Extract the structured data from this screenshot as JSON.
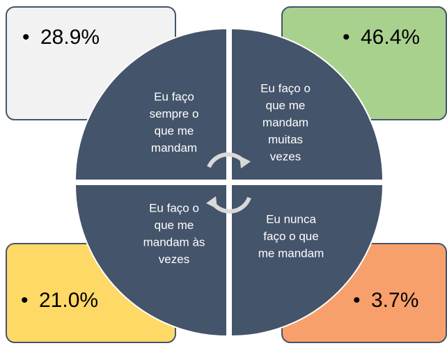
{
  "nodes": [
    {
      "label": [
        "Eu faço",
        "sempre o",
        "que me",
        "mandam"
      ],
      "value": "28.9%"
    },
    {
      "label": [
        "Eu faço o",
        "que me",
        "mandam",
        "muitas",
        "vezes"
      ],
      "value": "46.4%"
    },
    {
      "label": [
        "Eu faço o",
        "que me",
        "mandam às",
        "vezes"
      ],
      "value": "21.0%"
    },
    {
      "label": [
        "Eu nunca",
        "faço o que",
        "me mandam"
      ],
      "value": "3.7%"
    }
  ]
}
